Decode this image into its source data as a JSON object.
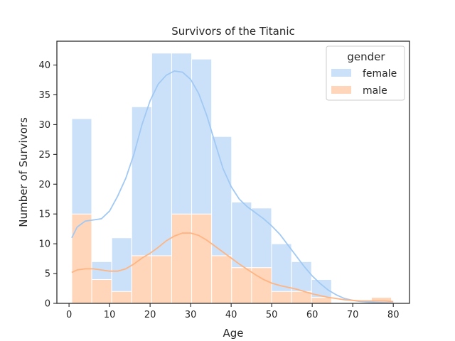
{
  "chart_data": {
    "type": "bar",
    "stacked": true,
    "title": "Survivors of the Titanic",
    "xlabel": "Age",
    "ylabel": "Number of Survivors",
    "xlim": [
      -3,
      84
    ],
    "ylim": [
      0,
      44
    ],
    "xticks": [
      0,
      10,
      20,
      30,
      40,
      50,
      60,
      70,
      80
    ],
    "yticks": [
      0,
      5,
      10,
      15,
      20,
      25,
      30,
      35,
      40
    ],
    "bin_edges": [
      0.67,
      5.6,
      10.53,
      15.46,
      20.39,
      25.32,
      30.25,
      35.18,
      40.11,
      45.04,
      49.97,
      54.9,
      59.83,
      64.76,
      69.69,
      74.62,
      79.55
    ],
    "series": [
      {
        "name": "female",
        "color": "#a1c9f4",
        "values": [
          16,
          3,
          9,
          25,
          34,
          27,
          26,
          20,
          11,
          10,
          8,
          5,
          3,
          0,
          0,
          0
        ],
        "kde": [
          [
            0.67,
            11
          ],
          [
            2,
            12.8
          ],
          [
            4,
            13.8
          ],
          [
            6,
            14
          ],
          [
            8,
            14.2
          ],
          [
            10,
            15.5
          ],
          [
            12,
            18
          ],
          [
            14,
            21
          ],
          [
            16,
            25
          ],
          [
            18,
            30
          ],
          [
            20,
            34
          ],
          [
            22,
            36.8
          ],
          [
            24,
            38.3
          ],
          [
            26,
            39
          ],
          [
            28,
            38.8
          ],
          [
            30,
            37.6
          ],
          [
            32,
            35.2
          ],
          [
            34,
            31.5
          ],
          [
            36,
            27
          ],
          [
            38,
            22.6
          ],
          [
            40,
            19.6
          ],
          [
            42,
            17.5
          ],
          [
            44,
            16.2
          ],
          [
            46,
            15.2
          ],
          [
            48,
            14.2
          ],
          [
            50,
            13
          ],
          [
            52,
            11.6
          ],
          [
            54,
            9.8
          ],
          [
            56,
            8
          ],
          [
            58,
            6.2
          ],
          [
            60,
            4.6
          ],
          [
            62,
            3.3
          ],
          [
            64,
            2.2
          ],
          [
            66,
            1.4
          ],
          [
            68,
            0.8
          ],
          [
            70,
            0.5
          ],
          [
            72,
            0.3
          ],
          [
            74,
            0.2
          ],
          [
            76,
            0.15
          ],
          [
            78,
            0.1
          ],
          [
            80,
            0.05
          ]
        ]
      },
      {
        "name": "male",
        "color": "#ffb482",
        "values": [
          15,
          4,
          2,
          8,
          8,
          15,
          15,
          8,
          6,
          6,
          2,
          2,
          1,
          0,
          0,
          1
        ],
        "kde": [
          [
            0.67,
            5.2
          ],
          [
            2,
            5.6
          ],
          [
            4,
            5.8
          ],
          [
            6,
            5.8
          ],
          [
            8,
            5.6
          ],
          [
            10,
            5.4
          ],
          [
            12,
            5.4
          ],
          [
            14,
            5.8
          ],
          [
            16,
            6.6
          ],
          [
            18,
            7.6
          ],
          [
            20,
            8.4
          ],
          [
            22,
            9.4
          ],
          [
            24,
            10.5
          ],
          [
            26,
            11.3
          ],
          [
            28,
            11.8
          ],
          [
            30,
            11.8
          ],
          [
            32,
            11.4
          ],
          [
            34,
            10.6
          ],
          [
            36,
            9.6
          ],
          [
            38,
            8.6
          ],
          [
            40,
            7.6
          ],
          [
            42,
            6.6
          ],
          [
            44,
            5.7
          ],
          [
            46,
            4.8
          ],
          [
            48,
            4
          ],
          [
            50,
            3.4
          ],
          [
            52,
            3
          ],
          [
            54,
            2.7
          ],
          [
            56,
            2.4
          ],
          [
            58,
            2
          ],
          [
            60,
            1.6
          ],
          [
            62,
            1.3
          ],
          [
            64,
            1
          ],
          [
            66,
            0.8
          ],
          [
            68,
            0.6
          ],
          [
            70,
            0.5
          ],
          [
            72,
            0.4
          ],
          [
            74,
            0.4
          ],
          [
            76,
            0.4
          ],
          [
            78,
            0.4
          ],
          [
            80,
            0.3
          ]
        ]
      }
    ],
    "legend": {
      "title": "gender",
      "position": "top-right",
      "entries": [
        "female",
        "male"
      ]
    },
    "grid": false
  }
}
